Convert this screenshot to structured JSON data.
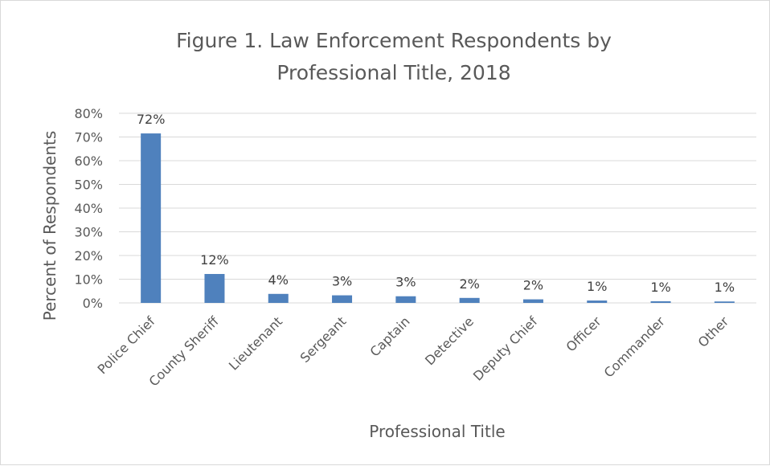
{
  "chart_data": {
    "type": "bar",
    "title_lines": [
      "Figure 1. Law Enforcement Respondents by",
      "Professional Title, 2018"
    ],
    "xlabel": "Professional Title",
    "ylabel": "Percent of Respondents",
    "categories": [
      "Police Chief",
      "County Sheriff",
      "Lieutenant",
      "Sergeant",
      "Captain",
      "Detective",
      "Deputy Chief",
      "Officer",
      "Commander",
      "Other"
    ],
    "values": [
      71.5,
      12.2,
      3.8,
      3.2,
      2.8,
      2.1,
      1.5,
      1.0,
      0.7,
      0.6
    ],
    "data_labels": [
      "72%",
      "12%",
      "4%",
      "3%",
      "3%",
      "2%",
      "2%",
      "1%",
      "1%",
      "1%"
    ],
    "ylim": [
      0,
      80
    ],
    "yticks": [
      0,
      10,
      20,
      30,
      40,
      50,
      60,
      70,
      80
    ],
    "ytick_labels": [
      "0%",
      "10%",
      "20%",
      "30%",
      "40%",
      "50%",
      "60%",
      "70%",
      "80%"
    ],
    "grid": true,
    "legend": "none",
    "bar_color": "#4f81bd",
    "grid_color": "#d9d9d9",
    "text_color": "#595959"
  }
}
